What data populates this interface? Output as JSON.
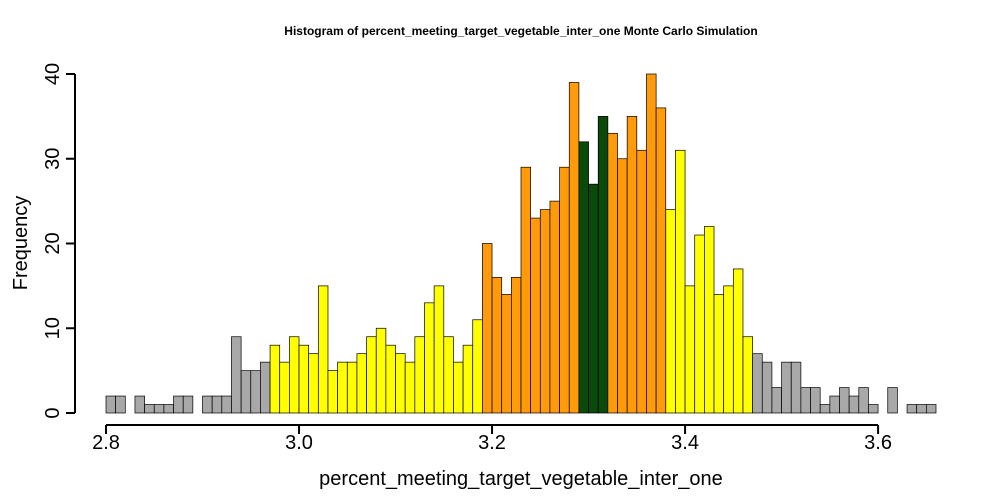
{
  "chart_data": {
    "type": "bar",
    "title": "Histogram of  percent_meeting_target_vegetable_inter_one  Monte Carlo Simulation",
    "xlabel": "percent_meeting_target_vegetable_inter_one",
    "ylabel": "Frequency",
    "xlim": [
      2.8,
      3.66
    ],
    "ylim": [
      0,
      40
    ],
    "x_ticks": [
      2.8,
      3.0,
      3.2,
      3.4,
      3.6
    ],
    "x_tick_labels": [
      "2.8",
      "3.0",
      "3.2",
      "3.4",
      "3.6"
    ],
    "y_ticks": [
      0,
      10,
      20,
      30,
      40
    ],
    "y_tick_labels": [
      "0",
      "10",
      "20",
      "30",
      "40"
    ],
    "bin_width": 0.01,
    "bin_start": 2.8,
    "values": [
      2,
      2,
      0,
      2,
      1,
      1,
      1,
      2,
      2,
      0,
      2,
      2,
      2,
      9,
      5,
      5,
      6,
      8,
      6,
      9,
      8,
      7,
      15,
      5,
      6,
      6,
      7,
      9,
      10,
      8,
      7,
      6,
      9,
      13,
      15,
      9,
      6,
      8,
      11,
      20,
      16,
      14,
      16,
      29,
      23,
      24,
      25,
      29,
      39,
      32,
      27,
      35,
      33,
      30,
      35,
      31,
      40,
      36,
      24,
      31,
      15,
      21,
      22,
      14,
      15,
      17,
      9,
      7,
      6,
      3,
      6,
      6,
      3,
      3,
      1,
      2,
      3,
      2,
      3,
      1,
      0,
      3,
      0,
      1,
      1,
      1
    ],
    "colors": {
      "gray": "#a8a8a8",
      "yellow": "#ffff00",
      "orange": "#ff9a0a",
      "green": "#0a4a0a"
    },
    "color_bands": [
      {
        "from": 2.8,
        "to": 2.97,
        "color": "gray"
      },
      {
        "from": 2.97,
        "to": 3.19,
        "color": "yellow"
      },
      {
        "from": 3.19,
        "to": 3.29,
        "color": "orange"
      },
      {
        "from": 3.29,
        "to": 3.32,
        "color": "green"
      },
      {
        "from": 3.32,
        "to": 3.38,
        "color": "orange"
      },
      {
        "from": 3.38,
        "to": 3.47,
        "color": "yellow"
      },
      {
        "from": 3.47,
        "to": 3.66,
        "color": "gray"
      }
    ],
    "grid": false,
    "legend": "none"
  }
}
